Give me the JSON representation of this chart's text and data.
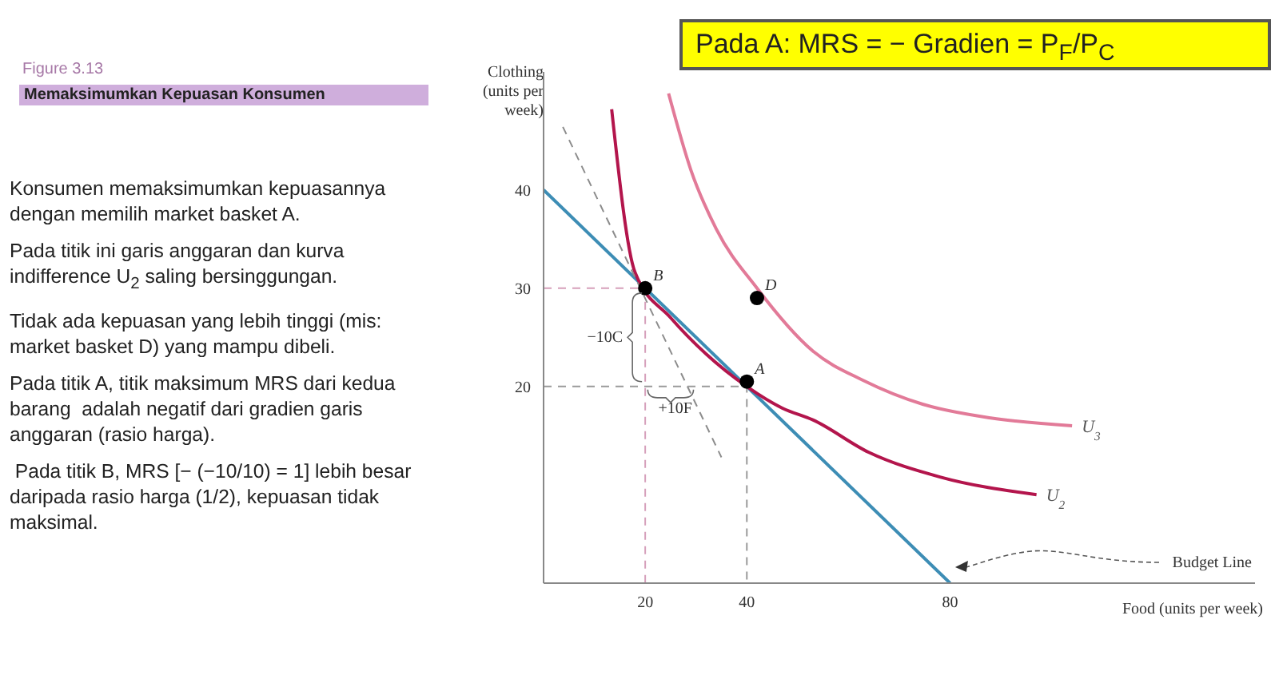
{
  "chart_data": {
    "type": "line",
    "title": "Figure 3.13",
    "subtitle": "Memaksimumkan Kepuasan Konsumen",
    "xlabel": "Food (units per week)",
    "ylabel": "Clothing (units per week)",
    "xlim": [
      0,
      140
    ],
    "ylim": [
      0,
      52
    ],
    "xticks": [
      20,
      40,
      80
    ],
    "yticks": [
      20,
      30,
      40
    ],
    "series": [
      {
        "name": "Budget Line",
        "color": "#3d8db5",
        "x": [
          0,
          80
        ],
        "values": [
          40,
          0
        ]
      },
      {
        "name": "U$_{2}$",
        "color": "#b3154c",
        "x": [
          13.4,
          18,
          25,
          32,
          40,
          47,
          53,
          64,
          78,
          97
        ],
        "values": [
          48.2,
          31.6,
          27,
          23.3,
          20,
          17.8,
          16.6,
          13.3,
          10.8,
          9
        ]
      },
      {
        "name": "U$_{3}$",
        "color": "#e27a98",
        "x": [
          24.6,
          29,
          34,
          42,
          53,
          63,
          74.6,
          88,
          104
        ],
        "values": [
          49.8,
          42,
          36,
          30,
          23.6,
          20.6,
          18.2,
          16.8,
          16
        ]
      },
      {
        "type": "line",
        "color": "#8c8c8c",
        "line_style": "dashed",
        "x": [
          3.8,
          35
        ],
        "values": [
          46.4,
          12.8
        ]
      },
      {
        "type": "line",
        "color": "#d6a0bb",
        "line_style": "dashed",
        "x": [
          0,
          20,
          20
        ],
        "values": [
          30,
          30,
          0
        ]
      },
      {
        "type": "line",
        "color": "#9a9a9a",
        "line_style": "dashed",
        "x": [
          0,
          40,
          40
        ],
        "values": [
          20,
          20,
          0
        ]
      },
      {
        "type": "scatter",
        "color": "#000000",
        "x": [
          20,
          40,
          42
        ],
        "values": [
          30,
          20.5,
          29
        ]
      }
    ],
    "annotations": [
      "Pada A: MRS =  − Gradien = P$_{F}$/P$_{C}$",
      "Konsumen memaksimumkan kepuasannya dengan memilih market basket A.",
      "Pada titik ini garis anggaran dan kurva indifference U$_{2}$ saling bersinggungan.",
      "Tidak ada kepuasan yang lebih tinggi (mis: market basket D) yang mampu dibeli.",
      "Pada titik A, titik maksimum MRS dari kedua barang  adalah negatif dari gradien garis anggaran (rasio harga).",
      " Pada titik B, MRS [− (−10/10) = 1] lebih besar daripada rasio harga (1/2), kepuasan tidak maksimal.",
      "−10C",
      {
        "text": "A",
        "x": 40,
        "y": 20.5
      },
      {
        "text": "B",
        "x": 20,
        "y": 30
      },
      {
        "text": "D",
        "x": 42,
        "y": 29
      },
      {
        "text": "+10F",
        "x": 21,
        "y": 16.5
      }
    ]
  }
}
